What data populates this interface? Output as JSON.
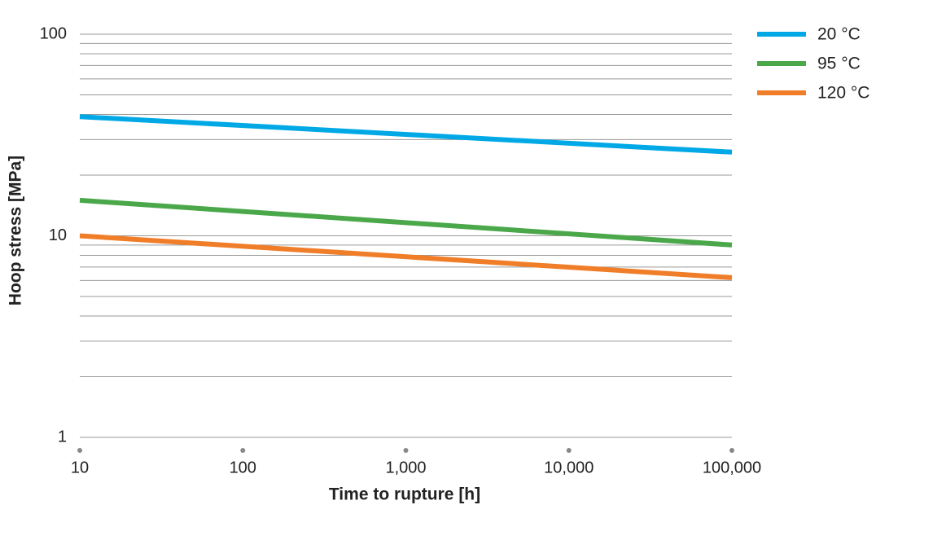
{
  "chart_data": {
    "type": "line",
    "x_label": "Time to rupture [h]",
    "y_label": "Hoop stress [MPa]",
    "x": [
      10,
      100000
    ],
    "series": [
      {
        "name": "20 °C",
        "color": "#00a9e6",
        "values": [
          39,
          26
        ]
      },
      {
        "name": "95 °C",
        "color": "#4aa84a",
        "values": [
          15,
          9
        ]
      },
      {
        "name": "120 °C",
        "color": "#f07d28",
        "values": [
          10,
          6.2
        ]
      }
    ],
    "x_log": true,
    "y_log": true,
    "xlim": [
      10,
      100000
    ],
    "xticks": [
      10,
      100,
      {
        "value": 1000,
        "label": "1,000"
      },
      {
        "value": 10000,
        "label": "10,000"
      },
      {
        "value": 100000,
        "label": "100,000"
      }
    ],
    "ylim": [
      1,
      100
    ],
    "yticks": [
      1,
      10,
      100
    ],
    "minor_yticks": [
      2,
      3,
      4,
      5,
      6,
      7,
      8,
      9,
      20,
      30,
      40,
      50,
      60,
      70,
      80,
      90
    ],
    "grid": true,
    "legend": "top-right"
  }
}
